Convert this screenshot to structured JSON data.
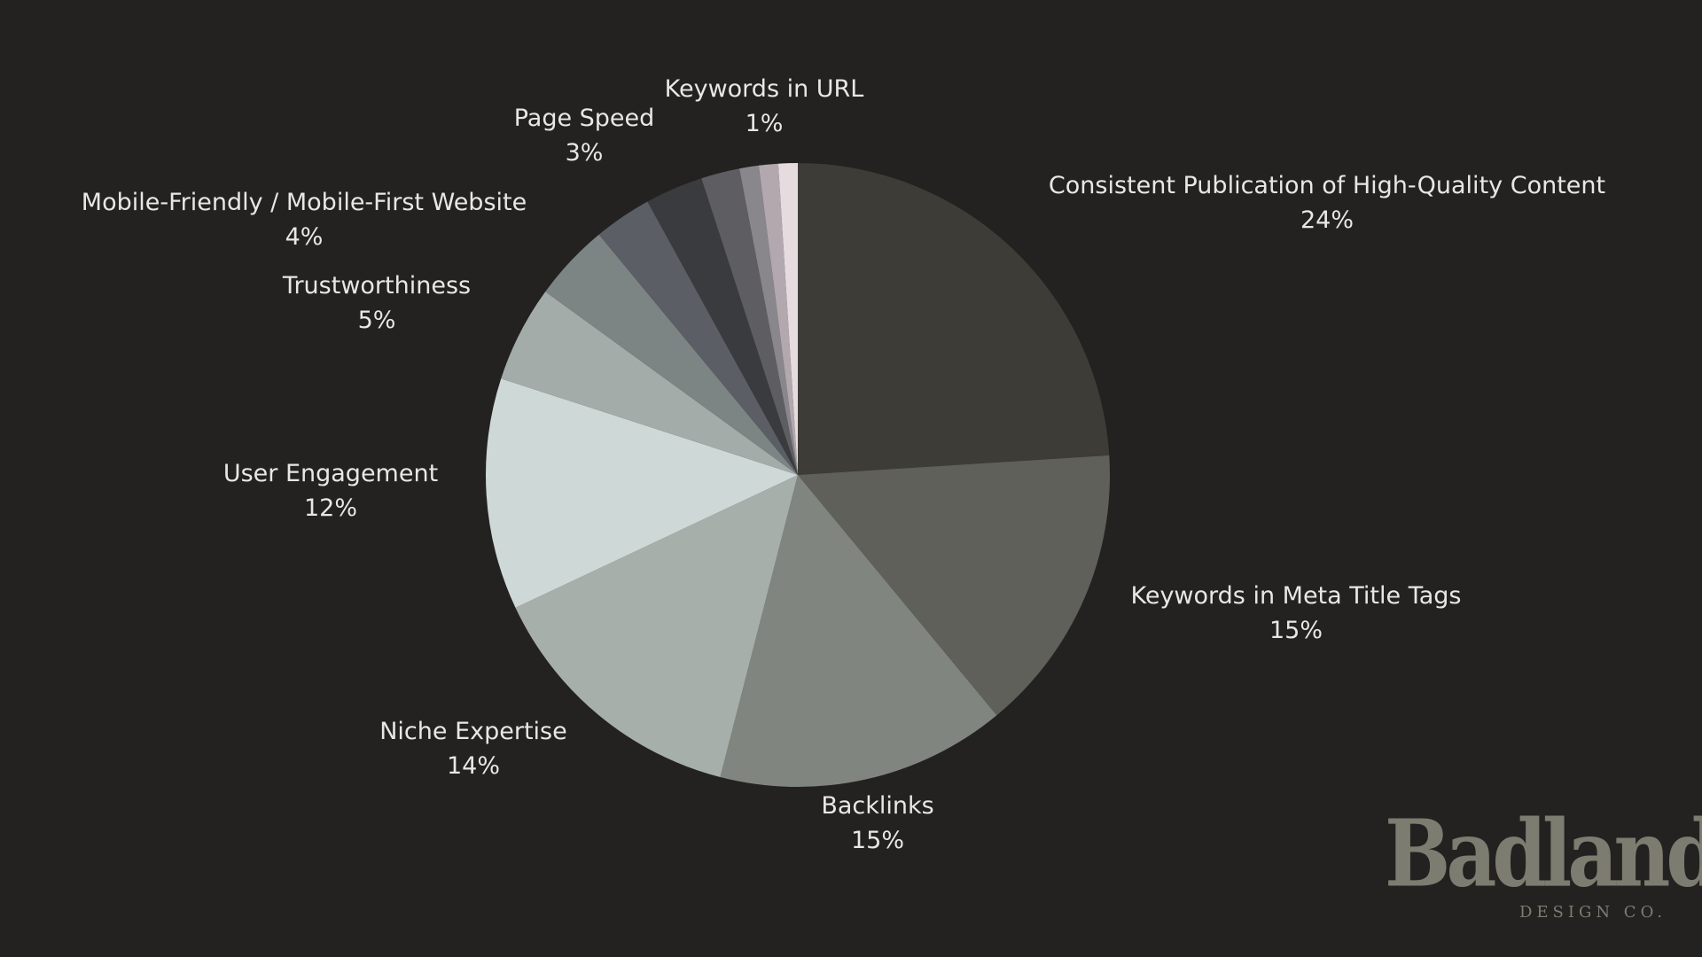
{
  "chart_data": {
    "type": "pie",
    "title": "",
    "start_angle_deg": 0,
    "direction": "clockwise",
    "slices": [
      {
        "label": "Consistent Publication of High-Quality Content",
        "value": 24,
        "pct_label": "24%",
        "color": "#3d3c37",
        "show_label": true
      },
      {
        "label": "Keywords in Meta Title Tags",
        "value": 15,
        "pct_label": "15%",
        "color": "#5f605a",
        "show_label": true
      },
      {
        "label": "Backlinks",
        "value": 15,
        "pct_label": "15%",
        "color": "#80867f",
        "show_label": true
      },
      {
        "label": "Niche Expertise",
        "value": 14,
        "pct_label": "14%",
        "color": "#a7afab",
        "show_label": true
      },
      {
        "label": "User Engagement",
        "value": 12,
        "pct_label": "12%",
        "color": "#ced8d6",
        "show_label": true
      },
      {
        "label": "Trustworthiness",
        "value": 5,
        "pct_label": "5%",
        "color": "#a4acaa",
        "show_label": true
      },
      {
        "label": "Mobile-Friendly / Mobile-First Website",
        "value": 4,
        "pct_label": "4%",
        "color": "#7d8584",
        "show_label": true
      },
      {
        "label": "",
        "value": 3,
        "pct_label": "",
        "color": "#5b5f65",
        "show_label": false
      },
      {
        "label": "Page Speed",
        "value": 3,
        "pct_label": "3%",
        "color": "#3a3b3f",
        "show_label": true
      },
      {
        "label": "",
        "value": 2,
        "pct_label": "",
        "color": "#5e5d62",
        "show_label": false
      },
      {
        "label": "",
        "value": 1,
        "pct_label": "",
        "color": "#89878c",
        "show_label": false
      },
      {
        "label": "",
        "value": 1,
        "pct_label": "",
        "color": "#b2a8ae",
        "show_label": false
      },
      {
        "label": "Keywords in URL",
        "value": 1,
        "pct_label": "1%",
        "color": "#e6dcdf",
        "show_label": true
      }
    ]
  },
  "logo": {
    "main": "Badlands",
    "sub": "DESIGN  CO."
  },
  "colors": {
    "background": "#232221",
    "label_text": "#e9e7e3",
    "logo": "#7d7c70"
  }
}
